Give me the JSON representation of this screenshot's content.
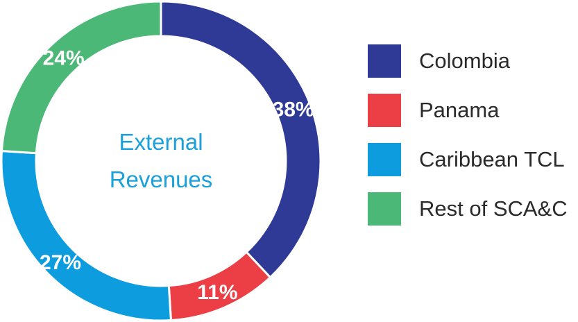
{
  "chart_data": {
    "type": "pie",
    "donut": true,
    "center_text": [
      "External",
      "Revenues"
    ],
    "slices": [
      {
        "label": "Colombia",
        "value": 38,
        "value_label": "38%",
        "color": "#2e3a96"
      },
      {
        "label": "Panama",
        "value": 11,
        "value_label": "11%",
        "color": "#ec3f45"
      },
      {
        "label": "Caribbean TCL",
        "value": 27,
        "value_label": "27%",
        "color": "#0d9ddf"
      },
      {
        "label": "Rest of SCA&C",
        "value": 24,
        "value_label": "24%",
        "color": "#4cb877"
      }
    ],
    "legend_position": "right"
  }
}
